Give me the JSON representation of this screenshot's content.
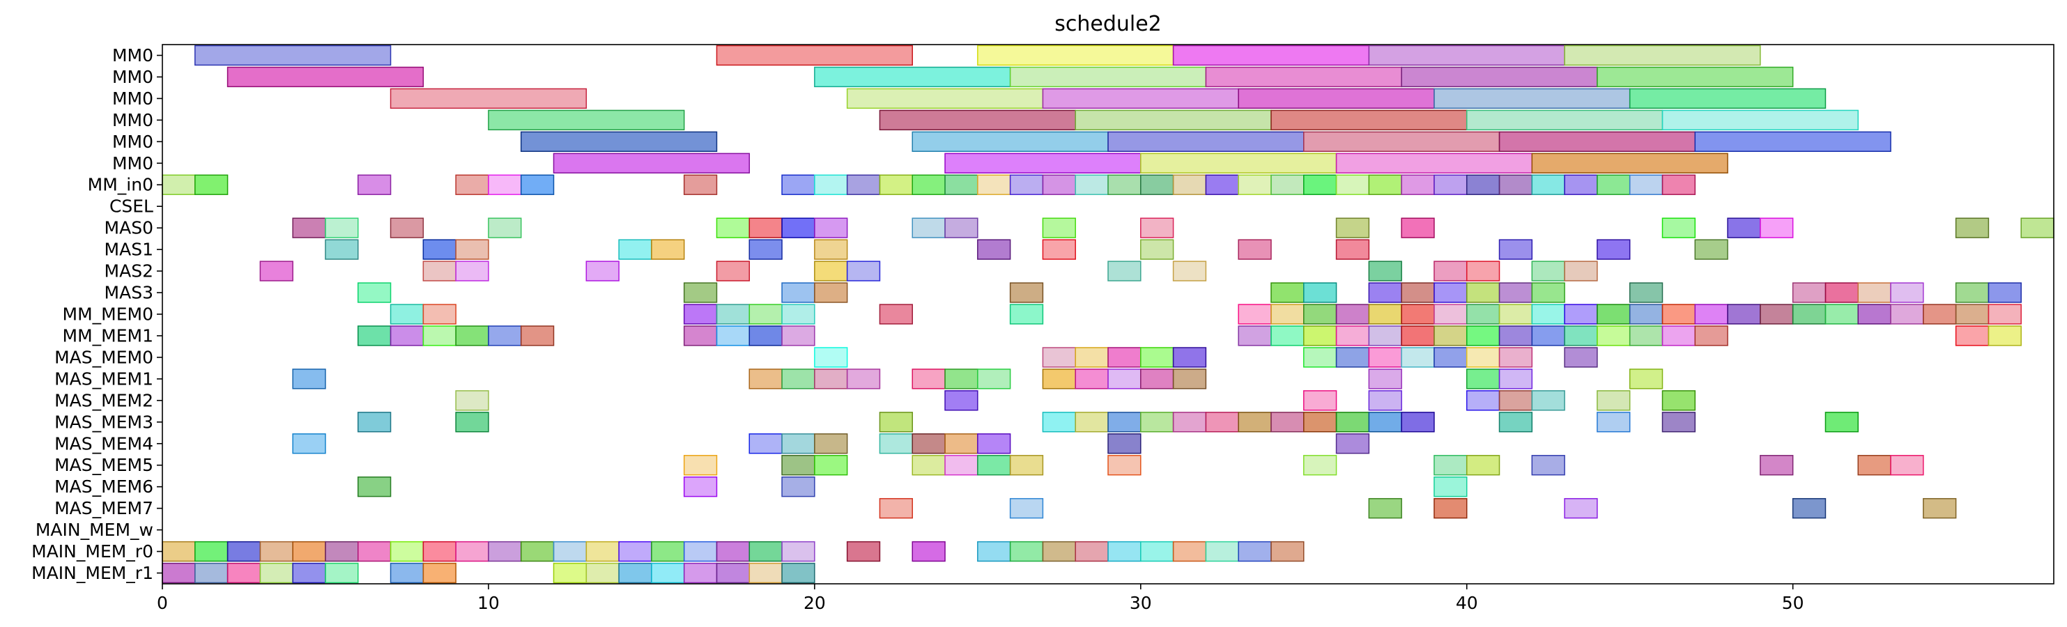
{
  "chart_data": {
    "type": "gantt",
    "title": "schedule2",
    "xlabel": "",
    "ylabel": "",
    "xlim": [
      0,
      58
    ],
    "x_ticks": [
      0,
      10,
      20,
      30,
      40,
      50
    ],
    "grid": false,
    "rows": [
      "MM0",
      "MM0",
      "MM0",
      "MM0",
      "MM0",
      "MM0",
      "MM_in0",
      "CSEL",
      "MAS0",
      "MAS1",
      "MAS2",
      "MAS3",
      "MM_MEM0",
      "MM_MEM1",
      "MAS_MEM0",
      "MAS_MEM1",
      "MAS_MEM2",
      "MAS_MEM3",
      "MAS_MEM4",
      "MAS_MEM5",
      "MAS_MEM6",
      "MAS_MEM7",
      "MAIN_MEM_w",
      "MAIN_MEM_r0",
      "MAIN_MEM_r1"
    ],
    "tasks": [
      [
        [
          1,
          7
        ],
        [
          17,
          23
        ],
        [
          25,
          31
        ],
        [
          31,
          37
        ],
        [
          37,
          43
        ],
        [
          43,
          49
        ]
      ],
      [
        [
          2,
          8
        ],
        [
          20,
          26
        ],
        [
          26,
          32
        ],
        [
          32,
          38
        ],
        [
          38,
          44
        ],
        [
          44,
          50
        ]
      ],
      [
        [
          7,
          13
        ],
        [
          21,
          27
        ],
        [
          27,
          33
        ],
        [
          33,
          39
        ],
        [
          39,
          45
        ],
        [
          45,
          51
        ]
      ],
      [
        [
          10,
          16
        ],
        [
          22,
          28
        ],
        [
          28,
          34
        ],
        [
          34,
          40
        ],
        [
          40,
          46
        ],
        [
          46,
          52
        ]
      ],
      [
        [
          11,
          17
        ],
        [
          23,
          29
        ],
        [
          29,
          35
        ],
        [
          35,
          41
        ],
        [
          41,
          47
        ],
        [
          47,
          53
        ]
      ],
      [
        [
          12,
          18
        ],
        [
          24,
          30
        ],
        [
          30,
          36
        ],
        [
          36,
          42
        ],
        [
          42,
          48
        ]
      ],
      [
        [
          0,
          1
        ],
        [
          1,
          2
        ],
        [
          6,
          7
        ],
        [
          9,
          10
        ],
        [
          10,
          11
        ],
        [
          11,
          12
        ],
        [
          16,
          17
        ],
        [
          19,
          20
        ],
        [
          20,
          21
        ],
        [
          21,
          22
        ],
        [
          22,
          23
        ],
        [
          23,
          24
        ],
        [
          24,
          25
        ],
        [
          25,
          26
        ],
        [
          26,
          27
        ],
        [
          27,
          28
        ],
        [
          28,
          29
        ],
        [
          29,
          30
        ],
        [
          30,
          31
        ],
        [
          31,
          32
        ],
        [
          32,
          33
        ],
        [
          33,
          34
        ],
        [
          34,
          35
        ],
        [
          35,
          36
        ],
        [
          36,
          37
        ],
        [
          37,
          38
        ],
        [
          38,
          39
        ],
        [
          39,
          40
        ],
        [
          40,
          41
        ],
        [
          41,
          42
        ],
        [
          42,
          43
        ],
        [
          43,
          44
        ],
        [
          44,
          45
        ],
        [
          45,
          46
        ],
        [
          46,
          47
        ]
      ],
      [],
      [
        [
          4,
          5
        ],
        [
          5,
          6
        ],
        [
          7,
          8
        ],
        [
          10,
          11
        ],
        [
          17,
          18
        ],
        [
          18,
          19
        ],
        [
          19,
          20
        ],
        [
          20,
          21
        ],
        [
          23,
          24
        ],
        [
          24,
          25
        ],
        [
          27,
          28
        ],
        [
          30,
          31
        ],
        [
          36,
          37
        ],
        [
          38,
          39
        ],
        [
          46,
          47
        ],
        [
          48,
          49
        ],
        [
          49,
          50
        ],
        [
          55,
          56
        ],
        [
          57,
          58
        ]
      ],
      [
        [
          5,
          6
        ],
        [
          8,
          9
        ],
        [
          9,
          10
        ],
        [
          14,
          15
        ],
        [
          15,
          16
        ],
        [
          18,
          19
        ],
        [
          20,
          21
        ],
        [
          25,
          26
        ],
        [
          27,
          28
        ],
        [
          30,
          31
        ],
        [
          33,
          34
        ],
        [
          36,
          37
        ],
        [
          41,
          42
        ],
        [
          44,
          45
        ],
        [
          47,
          48
        ]
      ],
      [
        [
          3,
          4
        ],
        [
          8,
          9
        ],
        [
          9,
          10
        ],
        [
          13,
          14
        ],
        [
          17,
          18
        ],
        [
          20,
          21
        ],
        [
          21,
          22
        ],
        [
          29,
          30
        ],
        [
          31,
          32
        ],
        [
          37,
          38
        ],
        [
          39,
          40
        ],
        [
          40,
          41
        ],
        [
          42,
          43
        ],
        [
          43,
          44
        ]
      ],
      [
        [
          6,
          7
        ],
        [
          16,
          17
        ],
        [
          19,
          20
        ],
        [
          20,
          21
        ],
        [
          26,
          27
        ],
        [
          34,
          35
        ],
        [
          35,
          36
        ],
        [
          37,
          38
        ],
        [
          38,
          39
        ],
        [
          39,
          40
        ],
        [
          40,
          41
        ],
        [
          41,
          42
        ],
        [
          42,
          43
        ],
        [
          45,
          46
        ],
        [
          50,
          51
        ],
        [
          51,
          52
        ],
        [
          52,
          53
        ],
        [
          53,
          54
        ],
        [
          55,
          56
        ],
        [
          56,
          57
        ]
      ],
      [
        [
          7,
          8
        ],
        [
          8,
          9
        ],
        [
          16,
          17
        ],
        [
          17,
          18
        ],
        [
          18,
          19
        ],
        [
          19,
          20
        ],
        [
          22,
          23
        ],
        [
          26,
          27
        ],
        [
          33,
          34
        ],
        [
          34,
          35
        ],
        [
          35,
          36
        ],
        [
          36,
          37
        ],
        [
          37,
          38
        ],
        [
          38,
          39
        ],
        [
          39,
          40
        ],
        [
          40,
          41
        ],
        [
          41,
          42
        ],
        [
          42,
          43
        ],
        [
          43,
          44
        ],
        [
          44,
          45
        ],
        [
          45,
          46
        ],
        [
          46,
          47
        ],
        [
          47,
          48
        ],
        [
          48,
          49
        ],
        [
          49,
          50
        ],
        [
          50,
          51
        ],
        [
          51,
          52
        ],
        [
          52,
          53
        ],
        [
          53,
          54
        ],
        [
          54,
          55
        ],
        [
          55,
          56
        ],
        [
          56,
          57
        ]
      ],
      [
        [
          6,
          7
        ],
        [
          7,
          8
        ],
        [
          8,
          9
        ],
        [
          9,
          10
        ],
        [
          10,
          11
        ],
        [
          11,
          12
        ],
        [
          16,
          17
        ],
        [
          17,
          18
        ],
        [
          18,
          19
        ],
        [
          19,
          20
        ],
        [
          33,
          34
        ],
        [
          34,
          35
        ],
        [
          35,
          36
        ],
        [
          36,
          37
        ],
        [
          37,
          38
        ],
        [
          38,
          39
        ],
        [
          39,
          40
        ],
        [
          40,
          41
        ],
        [
          41,
          42
        ],
        [
          42,
          43
        ],
        [
          43,
          44
        ],
        [
          44,
          45
        ],
        [
          45,
          46
        ],
        [
          46,
          47
        ],
        [
          47,
          48
        ],
        [
          55,
          56
        ],
        [
          56,
          57
        ]
      ],
      [
        [
          20,
          21
        ],
        [
          27,
          28
        ],
        [
          28,
          29
        ],
        [
          29,
          30
        ],
        [
          30,
          31
        ],
        [
          31,
          32
        ],
        [
          35,
          36
        ],
        [
          36,
          37
        ],
        [
          37,
          38
        ],
        [
          38,
          39
        ],
        [
          39,
          40
        ],
        [
          40,
          41
        ],
        [
          41,
          42
        ],
        [
          43,
          44
        ]
      ],
      [
        [
          4,
          5
        ],
        [
          18,
          19
        ],
        [
          19,
          20
        ],
        [
          20,
          21
        ],
        [
          21,
          22
        ],
        [
          23,
          24
        ],
        [
          24,
          25
        ],
        [
          25,
          26
        ],
        [
          27,
          28
        ],
        [
          28,
          29
        ],
        [
          29,
          30
        ],
        [
          30,
          31
        ],
        [
          31,
          32
        ],
        [
          37,
          38
        ],
        [
          40,
          41
        ],
        [
          41,
          42
        ],
        [
          45,
          46
        ]
      ],
      [
        [
          9,
          10
        ],
        [
          24,
          25
        ],
        [
          35,
          36
        ],
        [
          37,
          38
        ],
        [
          40,
          41
        ],
        [
          41,
          42
        ],
        [
          42,
          43
        ],
        [
          44,
          45
        ],
        [
          46,
          47
        ]
      ],
      [
        [
          6,
          7
        ],
        [
          9,
          10
        ],
        [
          22,
          23
        ],
        [
          27,
          28
        ],
        [
          28,
          29
        ],
        [
          29,
          30
        ],
        [
          30,
          31
        ],
        [
          31,
          32
        ],
        [
          32,
          33
        ],
        [
          33,
          34
        ],
        [
          34,
          35
        ],
        [
          35,
          36
        ],
        [
          36,
          37
        ],
        [
          37,
          38
        ],
        [
          38,
          39
        ],
        [
          41,
          42
        ],
        [
          44,
          45
        ],
        [
          46,
          47
        ],
        [
          51,
          52
        ]
      ],
      [
        [
          4,
          5
        ],
        [
          18,
          19
        ],
        [
          19,
          20
        ],
        [
          20,
          21
        ],
        [
          22,
          23
        ],
        [
          23,
          24
        ],
        [
          24,
          25
        ],
        [
          25,
          26
        ],
        [
          29,
          30
        ],
        [
          36,
          37
        ]
      ],
      [
        [
          16,
          17
        ],
        [
          19,
          20
        ],
        [
          20,
          21
        ],
        [
          23,
          24
        ],
        [
          24,
          25
        ],
        [
          25,
          26
        ],
        [
          26,
          27
        ],
        [
          29,
          30
        ],
        [
          35,
          36
        ],
        [
          39,
          40
        ],
        [
          40,
          41
        ],
        [
          42,
          43
        ],
        [
          49,
          50
        ],
        [
          52,
          53
        ],
        [
          53,
          54
        ]
      ],
      [
        [
          6,
          7
        ],
        [
          16,
          17
        ],
        [
          19,
          20
        ],
        [
          39,
          40
        ]
      ],
      [
        [
          22,
          23
        ],
        [
          26,
          27
        ],
        [
          37,
          38
        ],
        [
          39,
          40
        ],
        [
          43,
          44
        ],
        [
          50,
          51
        ],
        [
          54,
          55
        ]
      ],
      [],
      [
        [
          0,
          1
        ],
        [
          1,
          2
        ],
        [
          2,
          3
        ],
        [
          3,
          4
        ],
        [
          4,
          5
        ],
        [
          5,
          6
        ],
        [
          6,
          7
        ],
        [
          7,
          8
        ],
        [
          8,
          9
        ],
        [
          9,
          10
        ],
        [
          10,
          11
        ],
        [
          11,
          12
        ],
        [
          12,
          13
        ],
        [
          13,
          14
        ],
        [
          14,
          15
        ],
        [
          15,
          16
        ],
        [
          16,
          17
        ],
        [
          17,
          18
        ],
        [
          18,
          19
        ],
        [
          19,
          20
        ],
        [
          21,
          22
        ],
        [
          23,
          24
        ],
        [
          25,
          26
        ],
        [
          26,
          27
        ],
        [
          27,
          28
        ],
        [
          28,
          29
        ],
        [
          29,
          30
        ],
        [
          30,
          31
        ],
        [
          31,
          32
        ],
        [
          32,
          33
        ],
        [
          33,
          34
        ],
        [
          34,
          35
        ]
      ],
      [
        [
          0,
          1
        ],
        [
          1,
          2
        ],
        [
          2,
          3
        ],
        [
          3,
          4
        ],
        [
          4,
          5
        ],
        [
          5,
          6
        ],
        [
          7,
          8
        ],
        [
          8,
          9
        ],
        [
          12,
          13
        ],
        [
          13,
          14
        ],
        [
          14,
          15
        ],
        [
          15,
          16
        ],
        [
          16,
          17
        ],
        [
          17,
          18
        ],
        [
          18,
          19
        ],
        [
          19,
          20
        ]
      ]
    ]
  }
}
